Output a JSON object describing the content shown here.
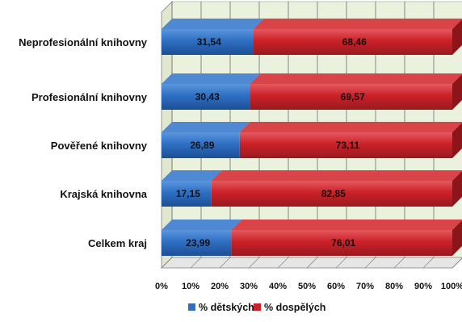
{
  "chart_data": {
    "type": "bar",
    "orientation": "horizontal",
    "stacked": "percent",
    "three_d": true,
    "categories": [
      "Neprofesionální knihovny",
      "Profesionální knihovny",
      "Pověřené knihovny",
      "Krajská knihovna",
      "Celkem kraj"
    ],
    "series": [
      {
        "name": "% dětských",
        "values": [
          31.54,
          30.43,
          26.89,
          17.15,
          23.99
        ],
        "color": "#2e6fc4"
      },
      {
        "name": "% dospělých",
        "values": [
          68.46,
          69.57,
          73.11,
          82.85,
          76.01
        ],
        "color": "#cc2128"
      }
    ],
    "value_labels": [
      [
        "31,54",
        "30,43",
        "26,89",
        "17,15",
        "23,99"
      ],
      [
        "68,46",
        "69,57",
        "73,11",
        "82,85",
        "76,01"
      ]
    ],
    "x_ticks": [
      "0%",
      "10%",
      "20%",
      "30%",
      "40%",
      "50%",
      "60%",
      "70%",
      "80%",
      "90%",
      "100%"
    ],
    "xlim": [
      0,
      100
    ],
    "grid": true,
    "legend_position": "bottom",
    "plot_background": "#eaf1dd"
  }
}
